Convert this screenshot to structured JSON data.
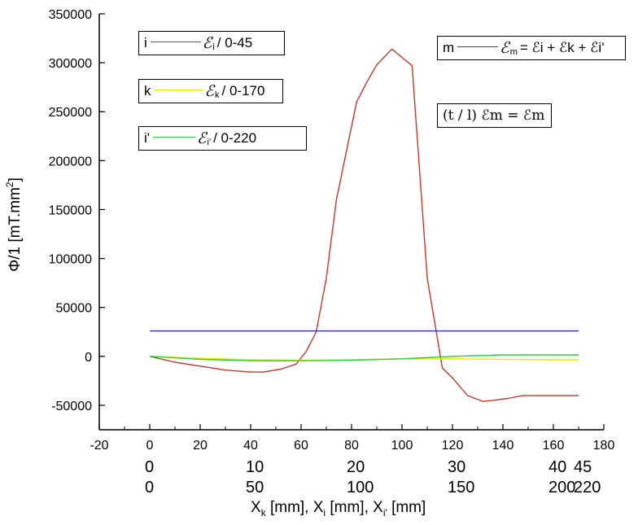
{
  "chart_data": {
    "type": "line",
    "ylabel": "Φ/1 [mT.mm²]",
    "ylabel_main": "Φ/1 [mT.mm",
    "ylabel_sup": "2",
    "ylabel_end": "]",
    "xlim": [
      -20,
      180
    ],
    "ylim": [
      -75000,
      350000
    ],
    "x_ticks": [
      "-20",
      "0",
      "20",
      "40",
      "60",
      "80",
      "100",
      "120",
      "140",
      "160",
      "180"
    ],
    "y_ticks": [
      "350000",
      "300000",
      "250000",
      "200000",
      "150000",
      "100000",
      "50000",
      "0",
      "-50000"
    ],
    "x_ticks_k": [
      "0",
      "10",
      "20",
      "30",
      "40",
      "45"
    ],
    "x_ticks_i1": [
      "0",
      "50",
      "100",
      "150",
      "200",
      "220"
    ],
    "xlabel_parts": [
      "X",
      "k",
      " [mm], X",
      "i",
      " [mm], X",
      "i'",
      " [mm]"
    ],
    "series": [
      {
        "name": "i",
        "color": "#c0392b",
        "x": [
          0,
          10,
          20,
          30,
          40,
          45,
          52,
          58,
          62,
          66,
          70,
          74,
          78,
          82,
          86,
          90,
          96,
          104,
          110,
          116,
          120,
          126,
          132,
          136,
          142,
          148,
          156,
          170
        ],
        "values": [
          0,
          -6000,
          -10000,
          -14000,
          -16000,
          -16000,
          -13000,
          -8000,
          5000,
          25000,
          80000,
          160000,
          210000,
          260000,
          280000,
          298000,
          314000,
          297000,
          80000,
          -12000,
          -22000,
          -40000,
          -46000,
          -45000,
          -43000,
          -40000,
          -40000,
          -40000
        ]
      },
      {
        "name": "k",
        "color": "#e8e800",
        "x": [
          0,
          20,
          40,
          60,
          80,
          100,
          120,
          140,
          160,
          170
        ],
        "values": [
          0,
          -2000,
          -3500,
          -4000,
          -3500,
          -2500,
          -2500,
          -3000,
          -3500,
          -3500
        ]
      },
      {
        "name": "i'",
        "color": "#2ecc40",
        "x": [
          0,
          20,
          40,
          60,
          80,
          100,
          120,
          140,
          160,
          170
        ],
        "values": [
          0,
          -3000,
          -4500,
          -4500,
          -4000,
          -2500,
          0,
          1500,
          1500,
          1500
        ]
      },
      {
        "name": "m",
        "color": "#3333cc",
        "x": [
          0,
          170
        ],
        "values": [
          26000,
          26000
        ]
      }
    ],
    "legend": [
      {
        "label": "i",
        "eps_sub": "i",
        "text": "/ 0-45",
        "color": "#c0392b"
      },
      {
        "label": "k",
        "eps_sub": "k",
        "text": "/ 0-170",
        "color": "#e8e800"
      },
      {
        "label": "i'",
        "eps_sub": "i'",
        "text": "/ 0-220",
        "color": "#2ecc40"
      },
      {
        "label": "m",
        "eps_sub": "m",
        "text": "= ℰi + ℰk + ℰi'",
        "color": "#3333cc"
      }
    ],
    "annotation": "(t / l) ℰm = ℰm"
  }
}
